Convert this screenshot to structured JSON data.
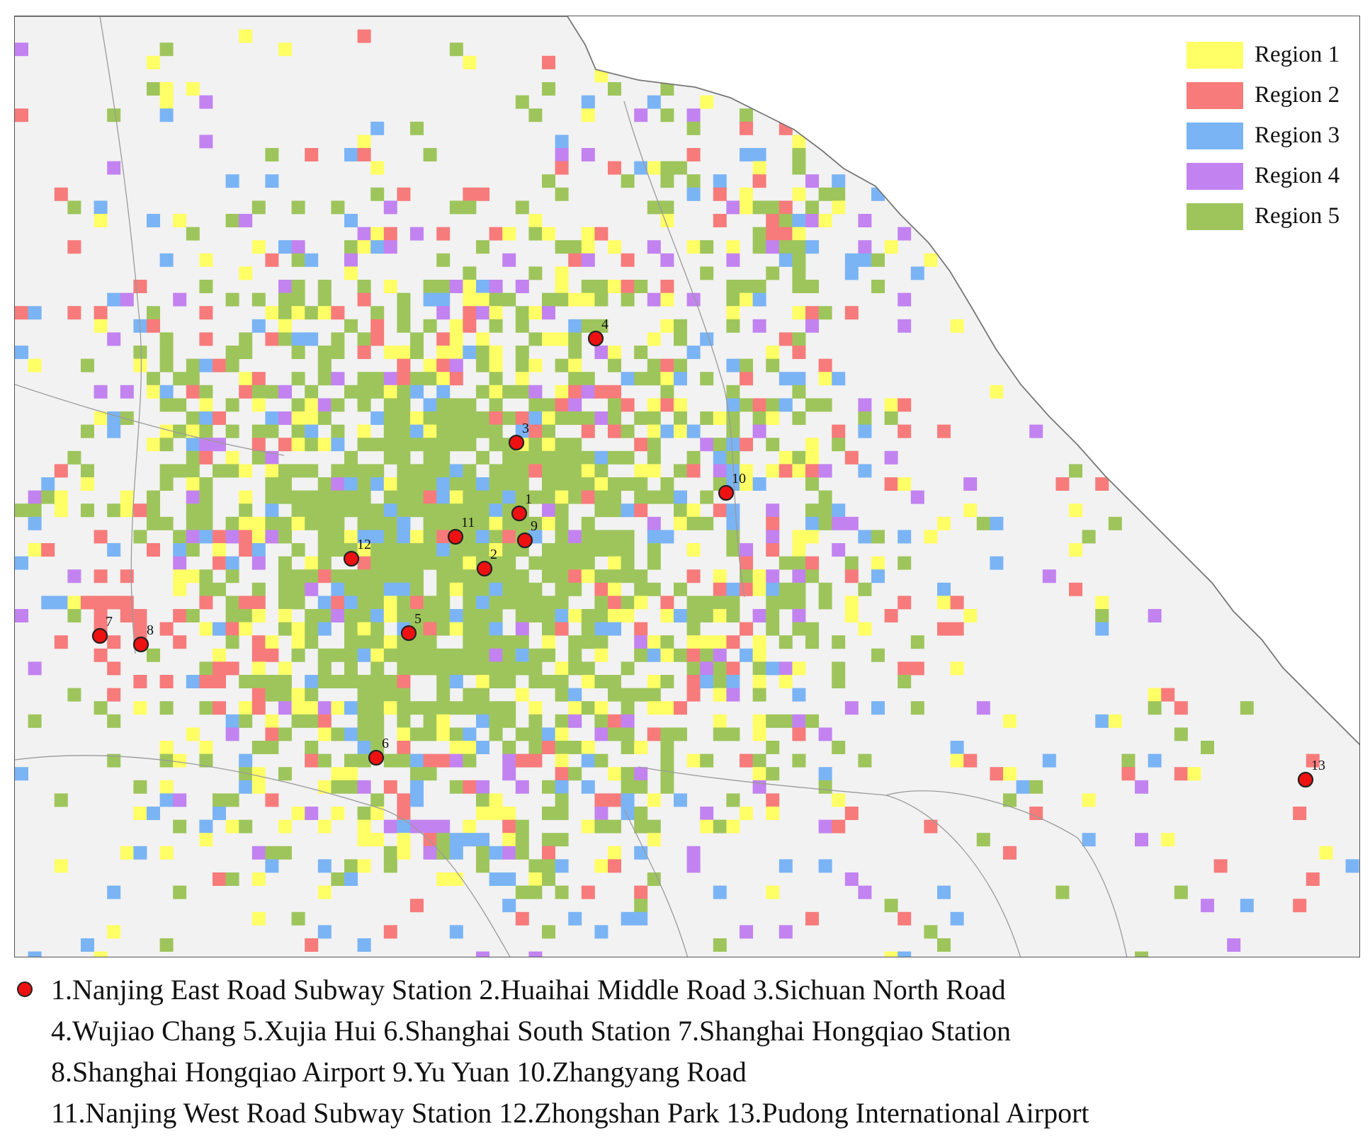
{
  "map": {
    "background_color": "#f2f2f2",
    "outline_color": "#777777",
    "district_line_color": "#9a9a9a",
    "empty_color": "#ffffff",
    "region_colors": {
      "1": "#ffff66",
      "2": "#f77b7b",
      "3": "#7ab4f5",
      "4": "#c283f0",
      "5": "#9ec55c"
    }
  },
  "legend": {
    "items": [
      {
        "label": "Region 1",
        "color": "#ffff66"
      },
      {
        "label": "Region 2",
        "color": "#f77b7b"
      },
      {
        "label": "Region 3",
        "color": "#7ab4f5"
      },
      {
        "label": "Region 4",
        "color": "#c283f0"
      },
      {
        "label": "Region 5",
        "color": "#9ec55c"
      }
    ]
  },
  "stations": [
    {
      "id": "1",
      "name": "Nanjing East Road Subway Station"
    },
    {
      "id": "2",
      "name": "Huaihai Middle Road"
    },
    {
      "id": "3",
      "name": "Sichuan North Road"
    },
    {
      "id": "4",
      "name": "Wujiao Chang"
    },
    {
      "id": "5",
      "name": "Xujia Hui"
    },
    {
      "id": "6",
      "name": "Shanghai South Station"
    },
    {
      "id": "7",
      "name": "Shanghai Hongqiao Station"
    },
    {
      "id": "8",
      "name": "Shanghai Hongqiao Airport"
    },
    {
      "id": "9",
      "name": "Yu Yuan"
    },
    {
      "id": "10",
      "name": "Zhangyang Road"
    },
    {
      "id": "11",
      "name": "Nanjing West Road Subway Station"
    },
    {
      "id": "12",
      "name": "Zhongshan Park"
    },
    {
      "id": "13",
      "name": "Pudong International Airport"
    }
  ],
  "station_marker_color": "#ee1111",
  "caption": {
    "lines": [
      "1.Nanjing East Road Subway Station 2.Huaihai Middle Road 3.Sichuan North Road",
      "4.Wujiao Chang 5.Xujia Hui 6.Shanghai South Station 7.Shanghai Hongqiao Station",
      "8.Shanghai Hongqiao Airport 9.Yu Yuan 10.Zhangyang Road",
      "11.Nanjing West Road Subway Station 12.Zhongshan Park 13.Pudong International Airport"
    ]
  }
}
